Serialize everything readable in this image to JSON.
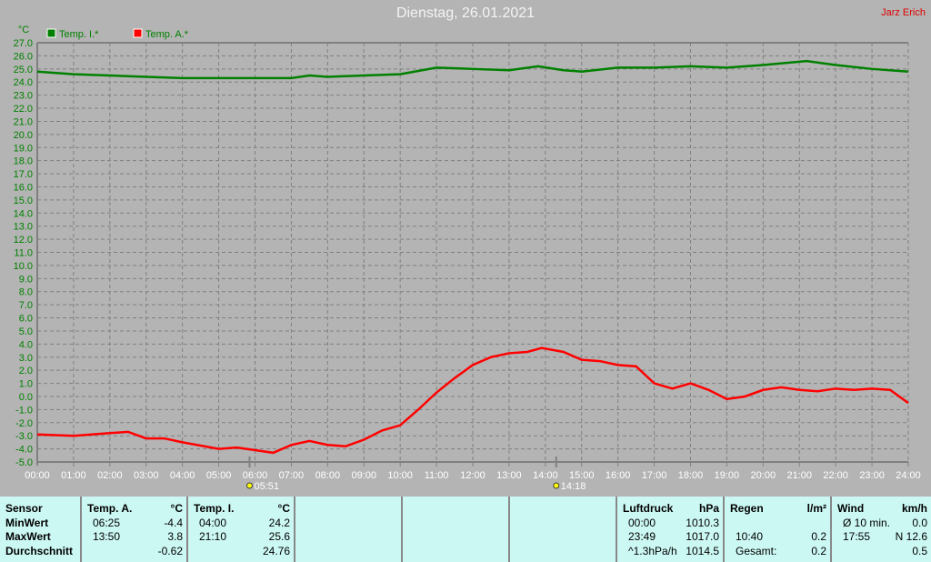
{
  "header": {
    "title": "Dienstag, 26.01.2021",
    "author": "Jarz Erich"
  },
  "chart_data": {
    "type": "line",
    "ylabel": "°C",
    "ylim": [
      -5,
      27
    ],
    "yticks": [
      "-5.0",
      "-4.0",
      "-3.0",
      "-2.0",
      "-1.0",
      "0.0",
      "1.0",
      "2.0",
      "3.0",
      "4.0",
      "5.0",
      "6.0",
      "7.0",
      "8.0",
      "9.0",
      "10.0",
      "11.0",
      "12.0",
      "13.0",
      "14.0",
      "15.0",
      "16.0",
      "17.0",
      "18.0",
      "19.0",
      "20.0",
      "21.0",
      "22.0",
      "23.0",
      "24.0",
      "25.0",
      "26.0",
      "27.0"
    ],
    "xticks": [
      "00:00",
      "01:00",
      "02:00",
      "03:00",
      "04:00",
      "05:00",
      "06:00",
      "07:00",
      "08:00",
      "09:00",
      "10:00",
      "11:00",
      "12:00",
      "13:00",
      "14:00",
      "15:00",
      "16:00",
      "17:00",
      "18:00",
      "19:00",
      "20:00",
      "21:00",
      "22:00",
      "23:00",
      "24:00"
    ],
    "grid": true,
    "legend": "top-left",
    "markers": [
      {
        "label": "05:51",
        "icon": "sunrise-icon",
        "hour": 5.85
      },
      {
        "label": "14:18",
        "icon": "sunset-icon",
        "hour": 14.3
      }
    ],
    "series": [
      {
        "name": "Temp. I.*",
        "color": "#008000",
        "x": [
          0,
          1,
          2,
          3,
          4,
          5,
          6,
          7,
          7.5,
          8,
          9,
          10,
          11,
          12,
          13,
          13.8,
          14.5,
          15,
          16,
          17,
          18,
          19,
          20,
          21.2,
          22,
          23,
          24
        ],
        "values": [
          24.8,
          24.6,
          24.5,
          24.4,
          24.3,
          24.3,
          24.3,
          24.3,
          24.5,
          24.4,
          24.5,
          24.6,
          25.1,
          25.0,
          24.9,
          25.2,
          24.9,
          24.8,
          25.1,
          25.1,
          25.2,
          25.1,
          25.3,
          25.6,
          25.3,
          25.0,
          24.8
        ]
      },
      {
        "name": "Temp. A.*",
        "color": "#ff0000",
        "x": [
          0,
          1,
          2,
          2.5,
          3,
          3.5,
          4,
          5,
          5.5,
          6,
          6.5,
          7,
          7.5,
          8,
          8.5,
          9,
          9.5,
          10,
          10.5,
          11,
          11.5,
          12,
          12.5,
          13,
          13.5,
          13.9,
          14.5,
          15,
          15.5,
          16,
          16.5,
          17,
          17.5,
          18,
          18.5,
          19,
          19.5,
          20,
          20.5,
          21,
          21.5,
          22,
          22.5,
          23,
          23.5,
          24
        ],
        "values": [
          -2.9,
          -3.0,
          -2.8,
          -2.7,
          -3.2,
          -3.2,
          -3.5,
          -4.0,
          -3.9,
          -4.1,
          -4.3,
          -3.7,
          -3.4,
          -3.7,
          -3.8,
          -3.3,
          -2.6,
          -2.2,
          -1.0,
          0.3,
          1.4,
          2.4,
          3.0,
          3.3,
          3.4,
          3.7,
          3.4,
          2.8,
          2.7,
          2.4,
          2.3,
          1.0,
          0.6,
          1.0,
          0.5,
          -0.2,
          0.0,
          0.5,
          0.7,
          0.5,
          0.4,
          0.6,
          0.5,
          0.6,
          0.5,
          -0.5
        ]
      }
    ]
  },
  "table": {
    "sensor": {
      "head": "Sensor",
      "rows": [
        "MinWert",
        "MaxWert",
        "Durchschnitt"
      ]
    },
    "temp_a": {
      "head": "Temp. A.",
      "unit": "°C",
      "rows": [
        [
          "06:25",
          "-4.4"
        ],
        [
          "13:50",
          "3.8"
        ],
        [
          "",
          "-0.62"
        ]
      ]
    },
    "temp_i": {
      "head": "Temp. I.",
      "unit": "°C",
      "rows": [
        [
          "04:00",
          "24.2"
        ],
        [
          "21:10",
          "25.6"
        ],
        [
          "",
          "24.76"
        ]
      ]
    },
    "luftdruck": {
      "head": "Luftdruck",
      "unit": "hPa",
      "rows": [
        [
          "00:00",
          "1010.3"
        ],
        [
          "23:49",
          "1017.0"
        ],
        [
          "^1.3hPa/h",
          "1014.5"
        ]
      ]
    },
    "regen": {
      "head": "Regen",
      "unit": "l/m²",
      "rows": [
        [
          "",
          ""
        ],
        [
          "10:40",
          "0.2"
        ],
        [
          "Gesamt:",
          "0.2"
        ]
      ]
    },
    "wind": {
      "head": "Wind",
      "unit": "km/h",
      "rows": [
        [
          "Ø 10 min.",
          "0.0"
        ],
        [
          "17:55",
          "N 12.6"
        ],
        [
          "",
          "0.5"
        ]
      ]
    }
  }
}
